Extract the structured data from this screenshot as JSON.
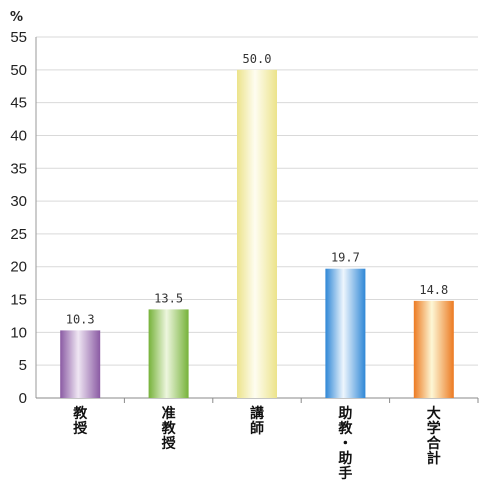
{
  "chart_data": {
    "type": "bar",
    "unit_label": "%",
    "ylim": [
      0,
      55
    ],
    "yticks": [
      0,
      5,
      10,
      15,
      20,
      25,
      30,
      35,
      40,
      45,
      50,
      55
    ],
    "grid": true,
    "categories": [
      "教授",
      "准教授",
      "講師",
      "助教・助手",
      "大学合計"
    ],
    "values": [
      10.3,
      13.5,
      50.0,
      19.7,
      14.8
    ],
    "value_labels": [
      "10.3",
      "13.5",
      "50.0",
      "19.7",
      "14.8"
    ],
    "colors": [
      {
        "dark": "#8a5aa3",
        "light": "#efe6f3"
      },
      {
        "dark": "#76b23a",
        "light": "#edf6de"
      },
      {
        "dark": "#ece38a",
        "light": "#fefdf1"
      },
      {
        "dark": "#2f87d6",
        "light": "#eef6fd"
      },
      {
        "dark": "#ec7a22",
        "light": "#fdf7d5"
      }
    ]
  }
}
